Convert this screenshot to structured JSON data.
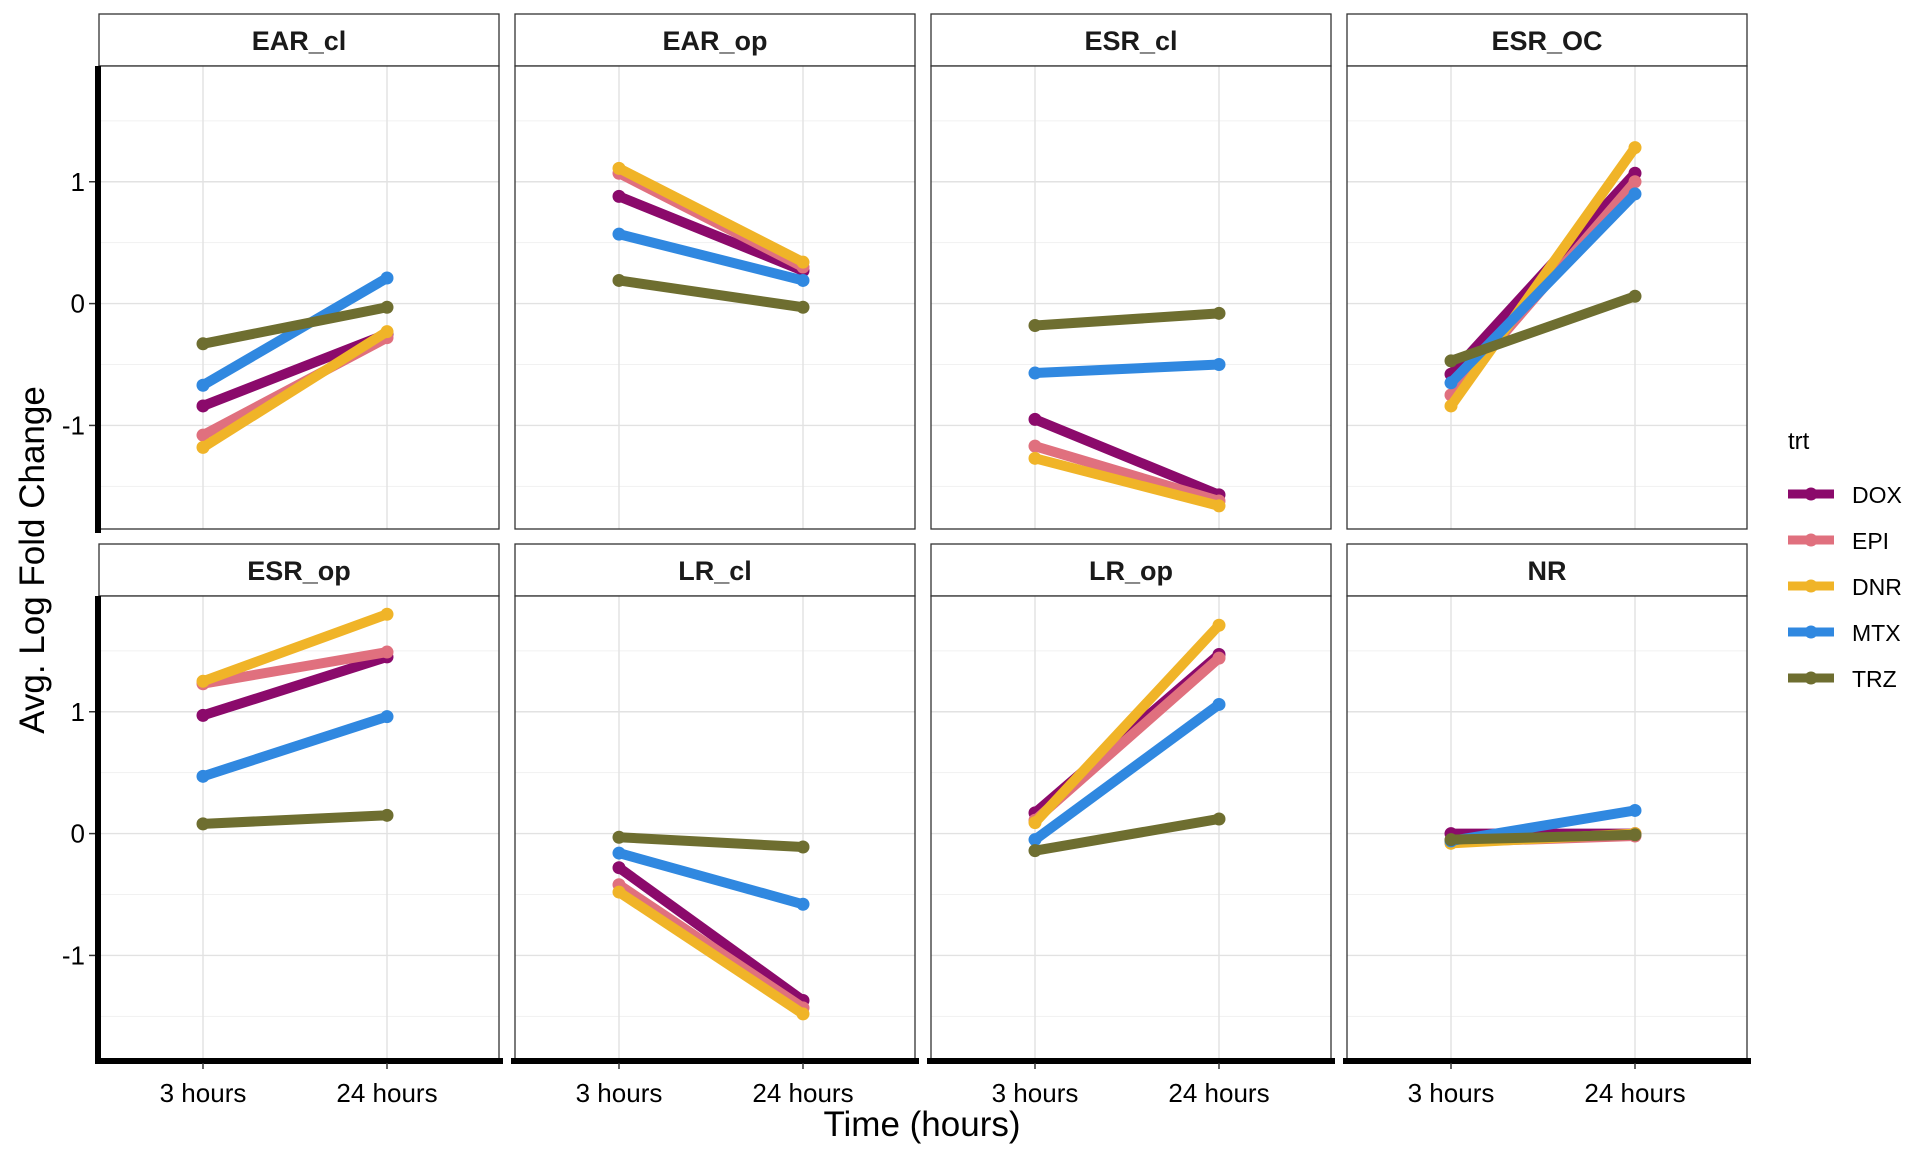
{
  "chart_data": {
    "type": "line",
    "xlabel": "Time (hours)",
    "ylabel": "Avg. Log Fold Change",
    "x_categories": [
      "3 hours",
      "24 hours"
    ],
    "y_ticks": [
      -1,
      0,
      1
    ],
    "ylim": [
      -1.85,
      1.95
    ],
    "grid": true,
    "legend": {
      "title": "trt",
      "position": "right",
      "items": [
        {
          "name": "DOX",
          "color": "#8B0A6B"
        },
        {
          "name": "EPI",
          "color": "#E0707E"
        },
        {
          "name": "DNR",
          "color": "#F0B428"
        },
        {
          "name": "MTX",
          "color": "#3088E0"
        },
        {
          "name": "TRZ",
          "color": "#6E6E30"
        }
      ]
    },
    "panels": [
      {
        "title": "EAR_cl",
        "series": [
          {
            "name": "DOX",
            "values": [
              -0.84,
              -0.25
            ]
          },
          {
            "name": "EPI",
            "values": [
              -1.08,
              -0.28
            ]
          },
          {
            "name": "DNR",
            "values": [
              -1.18,
              -0.23
            ]
          },
          {
            "name": "MTX",
            "values": [
              -0.67,
              0.21
            ]
          },
          {
            "name": "TRZ",
            "values": [
              -0.33,
              -0.03
            ]
          }
        ]
      },
      {
        "title": "EAR_op",
        "series": [
          {
            "name": "DOX",
            "values": [
              0.88,
              0.27
            ]
          },
          {
            "name": "EPI",
            "values": [
              1.07,
              0.3
            ]
          },
          {
            "name": "DNR",
            "values": [
              1.11,
              0.34
            ]
          },
          {
            "name": "MTX",
            "values": [
              0.57,
              0.19
            ]
          },
          {
            "name": "TRZ",
            "values": [
              0.19,
              -0.03
            ]
          }
        ]
      },
      {
        "title": "ESR_cl",
        "series": [
          {
            "name": "DOX",
            "values": [
              -0.95,
              -1.57
            ]
          },
          {
            "name": "EPI",
            "values": [
              -1.17,
              -1.62
            ]
          },
          {
            "name": "DNR",
            "values": [
              -1.27,
              -1.66
            ]
          },
          {
            "name": "MTX",
            "values": [
              -0.57,
              -0.5
            ]
          },
          {
            "name": "TRZ",
            "values": [
              -0.18,
              -0.08
            ]
          }
        ]
      },
      {
        "title": "ESR_OC",
        "series": [
          {
            "name": "DOX",
            "values": [
              -0.58,
              1.07
            ]
          },
          {
            "name": "EPI",
            "values": [
              -0.75,
              1.0
            ]
          },
          {
            "name": "DNR",
            "values": [
              -0.84,
              1.28
            ]
          },
          {
            "name": "MTX",
            "values": [
              -0.65,
              0.9
            ]
          },
          {
            "name": "TRZ",
            "values": [
              -0.47,
              0.06
            ]
          }
        ]
      },
      {
        "title": "ESR_op",
        "series": [
          {
            "name": "DOX",
            "values": [
              0.97,
              1.45
            ]
          },
          {
            "name": "EPI",
            "values": [
              1.23,
              1.49
            ]
          },
          {
            "name": "DNR",
            "values": [
              1.25,
              1.8
            ]
          },
          {
            "name": "MTX",
            "values": [
              0.47,
              0.96
            ]
          },
          {
            "name": "TRZ",
            "values": [
              0.08,
              0.15
            ]
          }
        ]
      },
      {
        "title": "LR_cl",
        "series": [
          {
            "name": "DOX",
            "values": [
              -0.28,
              -1.37
            ]
          },
          {
            "name": "EPI",
            "values": [
              -0.42,
              -1.43
            ]
          },
          {
            "name": "DNR",
            "values": [
              -0.48,
              -1.48
            ]
          },
          {
            "name": "MTX",
            "values": [
              -0.16,
              -0.58
            ]
          },
          {
            "name": "TRZ",
            "values": [
              -0.03,
              -0.11
            ]
          }
        ]
      },
      {
        "title": "LR_op",
        "series": [
          {
            "name": "DOX",
            "values": [
              0.17,
              1.47
            ]
          },
          {
            "name": "EPI",
            "values": [
              0.11,
              1.44
            ]
          },
          {
            "name": "DNR",
            "values": [
              0.09,
              1.71
            ]
          },
          {
            "name": "MTX",
            "values": [
              -0.05,
              1.06
            ]
          },
          {
            "name": "TRZ",
            "values": [
              -0.14,
              0.12
            ]
          }
        ]
      },
      {
        "title": "NR",
        "series": [
          {
            "name": "DOX",
            "values": [
              0.0,
              0.0
            ]
          },
          {
            "name": "EPI",
            "values": [
              -0.07,
              -0.02
            ]
          },
          {
            "name": "DNR",
            "values": [
              -0.08,
              0.0
            ]
          },
          {
            "name": "MTX",
            "values": [
              -0.06,
              0.19
            ]
          },
          {
            "name": "TRZ",
            "values": [
              -0.05,
              -0.01
            ]
          }
        ]
      }
    ]
  }
}
